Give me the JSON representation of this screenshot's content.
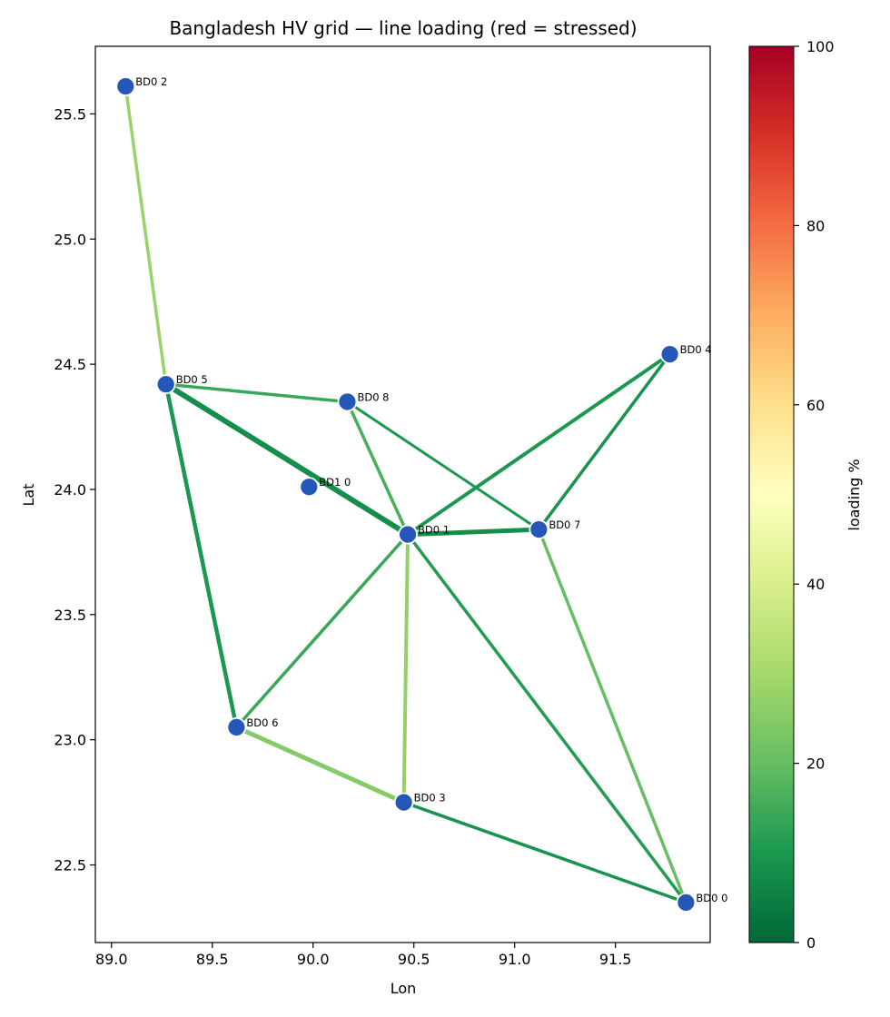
{
  "chart_data": {
    "type": "network-map",
    "title": "Bangladesh HV grid — line loading (red = stressed)",
    "xlabel": "Lon",
    "ylabel": "Lat",
    "xlim": [
      88.92,
      91.97
    ],
    "ylim": [
      22.19,
      25.77
    ],
    "xticks": [
      "89.0",
      "89.5",
      "90.0",
      "90.5",
      "91.0",
      "91.5"
    ],
    "xtick_values": [
      89.0,
      89.5,
      90.0,
      90.5,
      91.0,
      91.5
    ],
    "yticks": [
      "22.5",
      "23.0",
      "23.5",
      "24.0",
      "24.5",
      "25.0",
      "25.5"
    ],
    "ytick_values": [
      22.5,
      23.0,
      23.5,
      24.0,
      24.5,
      25.0,
      25.5
    ],
    "grid": false,
    "node_color": "#2557b8",
    "nodes": [
      {
        "name": "BD0 0",
        "lon": 91.85,
        "lat": 22.35
      },
      {
        "name": "BD0 1",
        "lon": 90.47,
        "lat": 23.82
      },
      {
        "name": "BD0 2",
        "lon": 89.07,
        "lat": 25.61
      },
      {
        "name": "BD0 3",
        "lon": 90.45,
        "lat": 22.75
      },
      {
        "name": "BD0 4",
        "lon": 91.77,
        "lat": 24.54
      },
      {
        "name": "BD0 5",
        "lon": 89.27,
        "lat": 24.42
      },
      {
        "name": "BD0 6",
        "lon": 89.62,
        "lat": 23.05
      },
      {
        "name": "BD0 7",
        "lon": 91.12,
        "lat": 23.84
      },
      {
        "name": "BD0 8",
        "lon": 90.17,
        "lat": 24.35
      },
      {
        "name": "BD1 0",
        "lon": 89.98,
        "lat": 24.01
      }
    ],
    "lines": [
      {
        "from": "BD0 2",
        "to": "BD0 5",
        "loading": 28,
        "width": 3.5
      },
      {
        "from": "BD0 5",
        "to": "BD0 8",
        "loading": 14,
        "width": 3.5
      },
      {
        "from": "BD0 5",
        "to": "BD0 1",
        "loading": 8,
        "width": 6
      },
      {
        "from": "BD0 5",
        "to": "BD0 6",
        "loading": 10,
        "width": 4.5
      },
      {
        "from": "BD0 8",
        "to": "BD0 1",
        "loading": 16,
        "width": 3.5
      },
      {
        "from": "BD0 8",
        "to": "BD0 7",
        "loading": 10,
        "width": 3
      },
      {
        "from": "BD0 1",
        "to": "BD0 7",
        "loading": 8,
        "width": 5
      },
      {
        "from": "BD0 1",
        "to": "BD0 4",
        "loading": 10,
        "width": 4
      },
      {
        "from": "BD0 7",
        "to": "BD0 4",
        "loading": 9,
        "width": 3.5
      },
      {
        "from": "BD0 1",
        "to": "BD0 6",
        "loading": 14,
        "width": 3.5
      },
      {
        "from": "BD0 1",
        "to": "BD0 3",
        "loading": 27,
        "width": 4
      },
      {
        "from": "BD0 1",
        "to": "BD0 0",
        "loading": 11,
        "width": 3.5
      },
      {
        "from": "BD0 7",
        "to": "BD0 0",
        "loading": 20,
        "width": 3.5
      },
      {
        "from": "BD0 6",
        "to": "BD0 3",
        "loading": 25,
        "width": 5
      },
      {
        "from": "BD0 3",
        "to": "BD0 0",
        "loading": 9,
        "width": 3.5
      }
    ],
    "colorbar": {
      "label": "loading %",
      "range": [
        0,
        100
      ],
      "ticks": [
        "0",
        "20",
        "40",
        "60",
        "80",
        "100"
      ],
      "tick_values": [
        0,
        20,
        40,
        60,
        80,
        100
      ],
      "colormap": "RdYlGn_r",
      "stops": [
        "#006837",
        "#1a9850",
        "#66bd63",
        "#a6d96a",
        "#d9ef8b",
        "#ffffbf",
        "#fee08b",
        "#fdae61",
        "#f46d43",
        "#d73027",
        "#a50026"
      ]
    }
  }
}
